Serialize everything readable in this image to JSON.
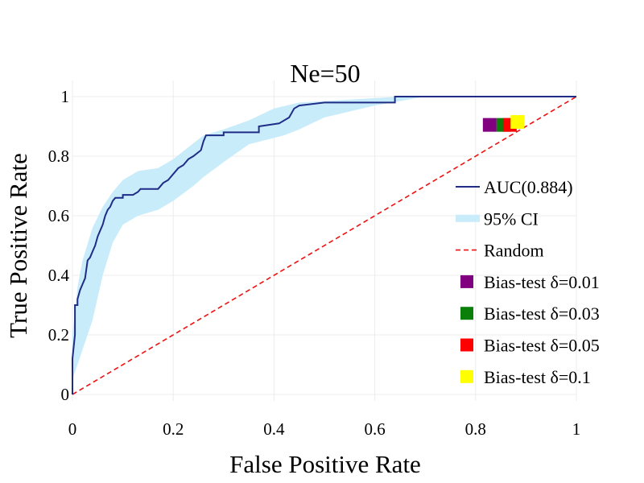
{
  "chart_data": {
    "type": "line",
    "title": "Ne=50",
    "xlabel": "False Positive Rate",
    "ylabel": "True Positive Rate",
    "xlim": [
      0,
      1
    ],
    "ylim": [
      0,
      1
    ],
    "grid": true,
    "legend_position": "right",
    "x_ticks": [
      {
        "value": 0,
        "label": "0"
      },
      {
        "value": 0.2,
        "label": "0.2"
      },
      {
        "value": 0.4,
        "label": "0.4"
      },
      {
        "value": 0.6,
        "label": "0.6"
      },
      {
        "value": 0.8,
        "label": "0.8"
      },
      {
        "value": 1,
        "label": "1"
      }
    ],
    "y_ticks": [
      {
        "value": 0,
        "label": "0"
      },
      {
        "value": 0.2,
        "label": "0.2"
      },
      {
        "value": 0.4,
        "label": "0.4"
      },
      {
        "value": 0.6,
        "label": "0.6"
      },
      {
        "value": 0.8,
        "label": "0.8"
      },
      {
        "value": 1,
        "label": "1"
      }
    ],
    "series": [
      {
        "name": "AUC(0.884)",
        "kind": "roc_step_line",
        "color": "#1f2d86",
        "points": [
          [
            0,
            0
          ],
          [
            0,
            0.12
          ],
          [
            0.005,
            0.2
          ],
          [
            0.005,
            0.3
          ],
          [
            0.01,
            0.3
          ],
          [
            0.01,
            0.32
          ],
          [
            0.015,
            0.35
          ],
          [
            0.02,
            0.37
          ],
          [
            0.025,
            0.39
          ],
          [
            0.03,
            0.45
          ],
          [
            0.035,
            0.46
          ],
          [
            0.04,
            0.48
          ],
          [
            0.045,
            0.5
          ],
          [
            0.05,
            0.53
          ],
          [
            0.055,
            0.55
          ],
          [
            0.06,
            0.57
          ],
          [
            0.065,
            0.6
          ],
          [
            0.07,
            0.62
          ],
          [
            0.075,
            0.63
          ],
          [
            0.08,
            0.65
          ],
          [
            0.085,
            0.66
          ],
          [
            0.1,
            0.66
          ],
          [
            0.1,
            0.67
          ],
          [
            0.12,
            0.67
          ],
          [
            0.13,
            0.68
          ],
          [
            0.135,
            0.69
          ],
          [
            0.17,
            0.69
          ],
          [
            0.18,
            0.71
          ],
          [
            0.19,
            0.72
          ],
          [
            0.2,
            0.74
          ],
          [
            0.21,
            0.76
          ],
          [
            0.22,
            0.77
          ],
          [
            0.23,
            0.79
          ],
          [
            0.24,
            0.8
          ],
          [
            0.255,
            0.82
          ],
          [
            0.26,
            0.85
          ],
          [
            0.265,
            0.87
          ],
          [
            0.3,
            0.87
          ],
          [
            0.3,
            0.88
          ],
          [
            0.37,
            0.88
          ],
          [
            0.37,
            0.9
          ],
          [
            0.41,
            0.91
          ],
          [
            0.43,
            0.93
          ],
          [
            0.44,
            0.96
          ],
          [
            0.45,
            0.97
          ],
          [
            0.5,
            0.98
          ],
          [
            0.64,
            0.98
          ],
          [
            0.64,
            1.0
          ],
          [
            1,
            1
          ]
        ]
      },
      {
        "name": "95% CI",
        "kind": "band",
        "color": "#c9ecfa",
        "upper": [
          [
            0,
            0.2
          ],
          [
            0.01,
            0.36
          ],
          [
            0.02,
            0.45
          ],
          [
            0.04,
            0.56
          ],
          [
            0.06,
            0.63
          ],
          [
            0.08,
            0.68
          ],
          [
            0.1,
            0.72
          ],
          [
            0.13,
            0.75
          ],
          [
            0.17,
            0.76
          ],
          [
            0.2,
            0.79
          ],
          [
            0.23,
            0.83
          ],
          [
            0.26,
            0.87
          ],
          [
            0.3,
            0.89
          ],
          [
            0.35,
            0.92
          ],
          [
            0.4,
            0.96
          ],
          [
            0.45,
            0.98
          ],
          [
            0.55,
            0.99
          ],
          [
            0.65,
            1.0
          ],
          [
            1,
            1
          ]
        ],
        "lower": [
          [
            0,
            0.05
          ],
          [
            0.02,
            0.15
          ],
          [
            0.04,
            0.25
          ],
          [
            0.06,
            0.4
          ],
          [
            0.08,
            0.51
          ],
          [
            0.1,
            0.57
          ],
          [
            0.13,
            0.6
          ],
          [
            0.17,
            0.62
          ],
          [
            0.2,
            0.65
          ],
          [
            0.24,
            0.7
          ],
          [
            0.26,
            0.73
          ],
          [
            0.3,
            0.78
          ],
          [
            0.35,
            0.84
          ],
          [
            0.42,
            0.87
          ],
          [
            0.45,
            0.89
          ],
          [
            0.5,
            0.93
          ],
          [
            0.6,
            0.97
          ],
          [
            0.7,
            1.0
          ],
          [
            1,
            1
          ]
        ]
      },
      {
        "name": "Random",
        "kind": "dashed_line",
        "color": "#ee1111",
        "points": [
          [
            0,
            0
          ],
          [
            1,
            1
          ]
        ]
      },
      {
        "name": "Bias-test δ=0.01",
        "kind": "marker",
        "color": "#800080",
        "x": 0.828,
        "y": 0.905
      },
      {
        "name": "Bias-test δ=0.03",
        "kind": "marker",
        "color": "#0a7f0a",
        "x": 0.855,
        "y": 0.905
      },
      {
        "name": "Bias-test δ=0.05",
        "kind": "marker",
        "color": "#ff0000",
        "x": 0.868,
        "y": 0.905
      },
      {
        "name": "Bias-test δ=0.1",
        "kind": "marker",
        "color": "#ffff00",
        "x": 0.883,
        "y": 0.915
      }
    ],
    "legend": [
      {
        "label": "AUC(0.884)",
        "symbol": "line",
        "color": "#1f2d86"
      },
      {
        "label": "95% CI",
        "symbol": "band",
        "color": "#c9ecfa"
      },
      {
        "label": "Random",
        "symbol": "dash",
        "color": "#ee1111"
      },
      {
        "label": "Bias-test δ=0.01",
        "symbol": "square",
        "color": "#800080"
      },
      {
        "label": "Bias-test δ=0.03",
        "symbol": "square",
        "color": "#0a7f0a"
      },
      {
        "label": "Bias-test δ=0.05",
        "symbol": "square",
        "color": "#ff0000"
      },
      {
        "label": "Bias-test δ=0.1",
        "symbol": "square",
        "color": "#ffff00"
      }
    ]
  }
}
